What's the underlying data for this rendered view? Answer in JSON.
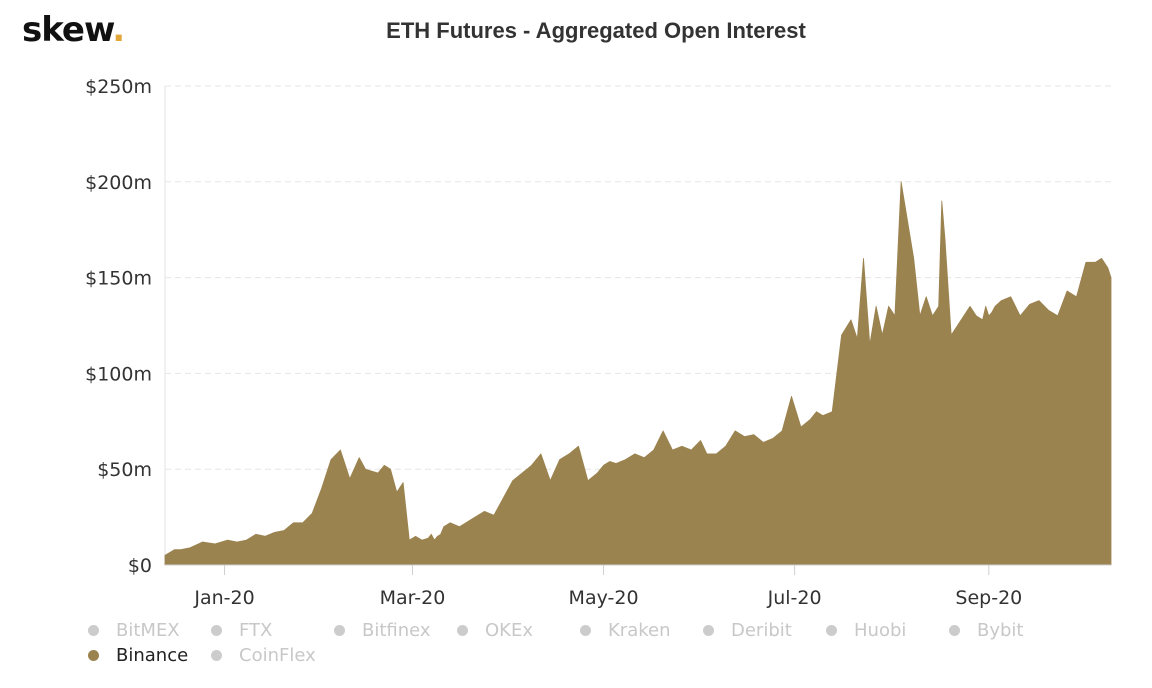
{
  "logo": {
    "text": "skew",
    "dot": "."
  },
  "colors": {
    "area": "#9b8350",
    "grid": "#e6e6e6",
    "inactive": "#cccccc"
  },
  "legend": [
    {
      "label": "BitMEX",
      "active": false
    },
    {
      "label": "FTX",
      "active": false
    },
    {
      "label": "Bitfinex",
      "active": false
    },
    {
      "label": "OKEx",
      "active": false
    },
    {
      "label": "Kraken",
      "active": false
    },
    {
      "label": "Deribit",
      "active": false
    },
    {
      "label": "Huobi",
      "active": false
    },
    {
      "label": "Bybit",
      "active": false
    },
    {
      "label": "Binance",
      "active": true
    },
    {
      "label": "CoinFlex",
      "active": false
    }
  ],
  "chart_data": {
    "type": "area",
    "title": "ETH Futures - Aggregated Open Interest",
    "xlabel": "",
    "ylabel": "",
    "y_unit": "USD millions",
    "ylim": [
      0,
      250
    ],
    "yticks": [
      0,
      50,
      100,
      150,
      200,
      250
    ],
    "ytick_labels": [
      "$0",
      "$50m",
      "$100m",
      "$150m",
      "$200m",
      "$250m"
    ],
    "xlim": [
      "2019-12-13",
      "2020-10-10"
    ],
    "xticks": [
      "2020-01-01",
      "2020-03-01",
      "2020-05-01",
      "2020-07-01",
      "2020-09-01"
    ],
    "xtick_labels": [
      "Jan-20",
      "Mar-20",
      "May-20",
      "Jul-20",
      "Sep-20"
    ],
    "grid": true,
    "legend_position": "bottom",
    "series": [
      {
        "name": "Binance",
        "x": [
          "2019-12-13",
          "2019-12-16",
          "2019-12-18",
          "2019-12-21",
          "2019-12-25",
          "2019-12-29",
          "2020-01-02",
          "2020-01-05",
          "2020-01-08",
          "2020-01-11",
          "2020-01-14",
          "2020-01-17",
          "2020-01-20",
          "2020-01-23",
          "2020-01-26",
          "2020-01-29",
          "2020-02-01",
          "2020-02-04",
          "2020-02-07",
          "2020-02-10",
          "2020-02-13",
          "2020-02-15",
          "2020-02-17",
          "2020-02-19",
          "2020-02-21",
          "2020-02-23",
          "2020-02-25",
          "2020-02-27",
          "2020-02-29",
          "2020-03-02",
          "2020-03-04",
          "2020-03-06",
          "2020-03-07",
          "2020-03-08",
          "2020-03-09",
          "2020-03-10",
          "2020-03-11",
          "2020-03-13",
          "2020-03-16",
          "2020-03-20",
          "2020-03-24",
          "2020-03-27",
          "2020-03-30",
          "2020-04-02",
          "2020-04-05",
          "2020-04-08",
          "2020-04-11",
          "2020-04-14",
          "2020-04-17",
          "2020-04-20",
          "2020-04-23",
          "2020-04-26",
          "2020-04-29",
          "2020-04-30",
          "2020-05-01",
          "2020-05-03",
          "2020-05-05",
          "2020-05-08",
          "2020-05-11",
          "2020-05-14",
          "2020-05-17",
          "2020-05-20",
          "2020-05-23",
          "2020-05-26",
          "2020-05-29",
          "2020-06-01",
          "2020-06-03",
          "2020-06-06",
          "2020-06-09",
          "2020-06-12",
          "2020-06-15",
          "2020-06-18",
          "2020-06-21",
          "2020-06-24",
          "2020-06-27",
          "2020-06-30",
          "2020-07-03",
          "2020-07-06",
          "2020-07-08",
          "2020-07-10",
          "2020-07-13",
          "2020-07-16",
          "2020-07-19",
          "2020-07-21",
          "2020-07-23",
          "2020-07-25",
          "2020-07-27",
          "2020-07-29",
          "2020-07-31",
          "2020-08-02",
          "2020-08-04",
          "2020-08-06",
          "2020-08-08",
          "2020-08-10",
          "2020-08-12",
          "2020-08-14",
          "2020-08-16",
          "2020-08-17",
          "2020-08-18",
          "2020-08-20",
          "2020-08-22",
          "2020-08-24",
          "2020-08-26",
          "2020-08-28",
          "2020-08-30",
          "2020-08-31",
          "2020-09-01",
          "2020-09-02",
          "2020-09-03",
          "2020-09-05",
          "2020-09-08",
          "2020-09-11",
          "2020-09-14",
          "2020-09-17",
          "2020-09-20",
          "2020-09-23",
          "2020-09-26",
          "2020-09-29",
          "2020-10-02",
          "2020-10-05",
          "2020-10-07",
          "2020-10-09",
          "2020-10-10"
        ],
        "values": [
          5,
          8,
          8,
          9,
          12,
          11,
          13,
          12,
          13,
          16,
          15,
          17,
          18,
          22,
          22,
          27,
          40,
          55,
          60,
          45,
          56,
          50,
          49,
          48,
          52,
          50,
          38,
          43,
          13,
          15,
          13,
          14,
          16,
          13,
          15,
          16,
          20,
          22,
          20,
          24,
          28,
          26,
          35,
          44,
          48,
          52,
          58,
          44,
          55,
          58,
          62,
          44,
          48,
          50,
          52,
          54,
          53,
          55,
          58,
          56,
          60,
          70,
          60,
          62,
          60,
          65,
          58,
          58,
          62,
          70,
          67,
          68,
          64,
          66,
          70,
          88,
          72,
          76,
          80,
          78,
          80,
          120,
          128,
          118,
          160,
          115,
          135,
          120,
          135,
          130,
          200,
          180,
          160,
          130,
          140,
          130,
          135,
          190,
          170,
          120,
          125,
          130,
          135,
          130,
          128,
          135,
          130,
          132,
          135,
          138,
          140,
          130,
          136,
          138,
          133,
          130,
          143,
          140,
          158,
          158,
          160,
          155,
          150
        ]
      }
    ]
  }
}
